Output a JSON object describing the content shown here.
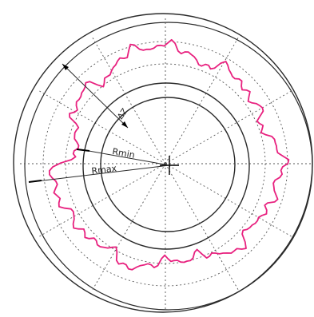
{
  "diagram": {
    "labels": {
      "rmin": "Rmin",
      "rmax": "Rmax",
      "dz": "ΔZ"
    },
    "colors": {
      "profile": "#e8217f",
      "lines": "#2a2a2a",
      "grid": "#555555",
      "background": "#ffffff"
    }
  }
}
